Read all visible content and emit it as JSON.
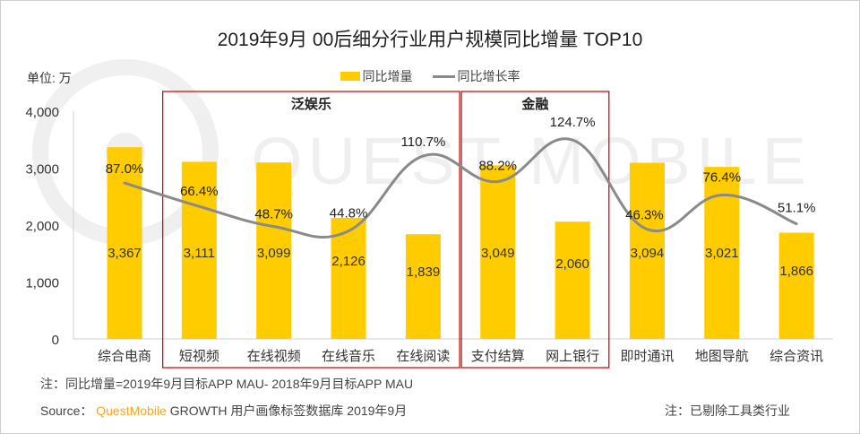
{
  "chart_data": {
    "type": "bar",
    "title": "2019年9月 00后细分行业用户规模同比增量 TOP10",
    "unit_label": "单位: 万",
    "categories": [
      "综合电商",
      "短视频",
      "在线视频",
      "在线音乐",
      "在线阅读",
      "支付结算",
      "网上银行",
      "即时通讯",
      "地图导航",
      "综合资讯"
    ],
    "series": [
      {
        "name": "同比增量",
        "type": "bar",
        "color": "#ffcc00",
        "values": [
          3367,
          3111,
          3099,
          2126,
          1839,
          3049,
          2060,
          3094,
          3021,
          1866
        ],
        "labels": [
          "3,367",
          "3,111",
          "3,099",
          "2,126",
          "1,839",
          "3,049",
          "2,060",
          "3,094",
          "3,021",
          "1,866"
        ]
      },
      {
        "name": "同比增长率",
        "type": "line",
        "smooth": true,
        "color": "#8a8a8a",
        "values": [
          87.0,
          66.4,
          48.7,
          44.8,
          110.7,
          88.2,
          124.7,
          46.3,
          76.4,
          51.1
        ],
        "labels": [
          "87.0%",
          "66.4%",
          "48.7%",
          "44.8%",
          "110.7%",
          "88.2%",
          "124.7%",
          "46.3%",
          "76.4%",
          "51.1%"
        ],
        "axis": "secondary-hidden"
      }
    ],
    "ylim": [
      0,
      4000
    ],
    "y2lim": [
      -50,
      150
    ],
    "yticks": [
      "0",
      "1,000",
      "2,000",
      "3,000",
      "4,000"
    ],
    "ytick_values": [
      0,
      1000,
      2000,
      3000,
      4000
    ],
    "grid": false,
    "legend": "top-center",
    "groups": [
      {
        "label": "泛娱乐",
        "categories": [
          "短视频",
          "在线视频",
          "在线音乐",
          "在线阅读"
        ],
        "border_color": "#c00000"
      },
      {
        "label": "金融",
        "categories": [
          "支付结算",
          "网上银行"
        ],
        "border_color": "#c00000"
      }
    ]
  },
  "watermark": "QUEST MOBILE",
  "footer": {
    "note_formula": "注：同比增量=2019年9月目标APP MAU- 2018年9月目标APP MAU",
    "source_prefix": "Source：",
    "source_brand": "QuestMobile",
    "source_rest": " GROWTH 用户画像标签数据库  2019年9月",
    "note_excluded": "注：已剔除工具类行业"
  }
}
